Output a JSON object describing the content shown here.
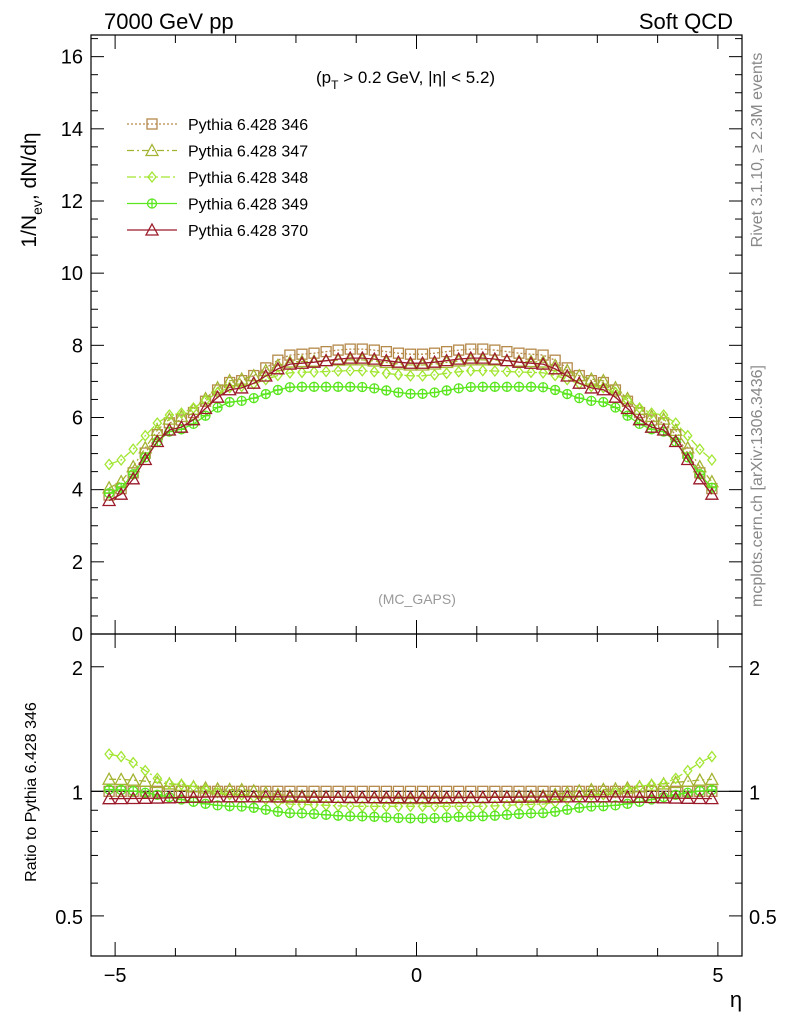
{
  "header": {
    "left": "7000 GeV pp",
    "right": "Soft QCD"
  },
  "side_labels": {
    "rivet": "Rivet 3.1.10, ≥ 2.3M events",
    "mcplots": "mcplots.cern.ch [arXiv:1306.3436]"
  },
  "watermark": "(MC_GAPS)",
  "cut_label": {
    "p": "(p",
    "sub": "T",
    "rest": " > 0.2 GeV, |η| < 5.2)"
  },
  "chart_data": [
    {
      "type": "line",
      "panel": "main",
      "ylabel": "1/N_ev dN/dη",
      "ylabel_parts": {
        "a": "1/N",
        "sub": "ev",
        "b": ", dN/dη"
      },
      "xlim": [
        -5.4,
        5.4
      ],
      "ylim": [
        0,
        16.6
      ],
      "y_ticks": [
        "0",
        "2",
        "4",
        "6",
        "8",
        "10",
        "12",
        "14",
        "16"
      ],
      "legend_position": "top-left",
      "series": [
        {
          "name": "Pythia 6.428 346",
          "color": "#b5894a",
          "marker": "square",
          "dash": "2,2",
          "knots": [
            [
              -5.1,
              3.85
            ],
            [
              -4.0,
              5.9
            ],
            [
              -3.0,
              7.0
            ],
            [
              -2.0,
              7.75
            ],
            [
              -1.0,
              7.9
            ],
            [
              0.0,
              7.75
            ],
            [
              1.0,
              7.9
            ],
            [
              2.0,
              7.75
            ],
            [
              3.0,
              7.0
            ],
            [
              4.0,
              5.9
            ],
            [
              5.1,
              3.85
            ]
          ]
        },
        {
          "name": "Pythia 6.428 347",
          "color": "#a5b332",
          "marker": "triangle-up",
          "dash": "7,3,2,3",
          "knots": [
            [
              -5.1,
              4.05
            ],
            [
              -4.0,
              6.0
            ],
            [
              -3.0,
              7.05
            ],
            [
              -2.0,
              7.55
            ],
            [
              -1.0,
              7.6
            ],
            [
              0.0,
              7.45
            ],
            [
              1.0,
              7.6
            ],
            [
              2.0,
              7.55
            ],
            [
              3.0,
              7.05
            ],
            [
              4.0,
              6.0
            ],
            [
              5.1,
              4.05
            ]
          ]
        },
        {
          "name": "Pythia 6.428 348",
          "color": "#a2e632",
          "marker": "diamond",
          "dash": "9,3,2,3",
          "knots": [
            [
              -5.1,
              4.7
            ],
            [
              -4.0,
              6.1
            ],
            [
              -3.0,
              6.85
            ],
            [
              -2.0,
              7.25
            ],
            [
              -1.0,
              7.3
            ],
            [
              0.0,
              7.15
            ],
            [
              1.0,
              7.3
            ],
            [
              2.0,
              7.25
            ],
            [
              3.0,
              6.85
            ],
            [
              4.0,
              6.1
            ],
            [
              5.1,
              4.7
            ]
          ]
        },
        {
          "name": "Pythia 6.428 349",
          "color": "#5be61f",
          "marker": "circle-cross",
          "dash": "",
          "knots": [
            [
              -5.1,
              3.9
            ],
            [
              -4.0,
              5.65
            ],
            [
              -3.0,
              6.45
            ],
            [
              -2.0,
              6.85
            ],
            [
              -1.0,
              6.85
            ],
            [
              0.0,
              6.65
            ],
            [
              1.0,
              6.85
            ],
            [
              2.0,
              6.85
            ],
            [
              3.0,
              6.45
            ],
            [
              4.0,
              5.65
            ],
            [
              5.1,
              3.9
            ]
          ]
        },
        {
          "name": "Pythia 6.428 370",
          "color": "#9b1a2a",
          "marker": "triangle-up",
          "dash": "",
          "knots": [
            [
              -5.1,
              3.7
            ],
            [
              -4.0,
              5.7
            ],
            [
              -3.0,
              6.8
            ],
            [
              -2.0,
              7.5
            ],
            [
              -1.0,
              7.65
            ],
            [
              0.0,
              7.5
            ],
            [
              1.0,
              7.65
            ],
            [
              2.0,
              7.5
            ],
            [
              3.0,
              6.8
            ],
            [
              4.0,
              5.7
            ],
            [
              5.1,
              3.7
            ]
          ]
        }
      ]
    },
    {
      "type": "line",
      "panel": "ratio",
      "ylabel": "Ratio to Pythia 6.428 346",
      "xlabel": "η",
      "xlim": [
        -5.4,
        5.4
      ],
      "ylim": [
        0.4,
        2.4
      ],
      "log_y": true,
      "x_ticks": [
        "−5",
        "0",
        "5"
      ],
      "y_ticks": [
        "0.5",
        "1",
        "2"
      ],
      "series": [
        {
          "name": "Pythia 6.428 346",
          "knots": [
            [
              -5.1,
              1.0
            ],
            [
              5.1,
              1.0
            ]
          ]
        },
        {
          "name": "Pythia 6.428 347",
          "knots": [
            [
              -5.1,
              1.07
            ],
            [
              -3.0,
              1.01
            ],
            [
              -2.0,
              0.975
            ],
            [
              -1.0,
              0.965
            ],
            [
              0.0,
              0.96
            ],
            [
              1.0,
              0.965
            ],
            [
              2.0,
              0.975
            ],
            [
              3.0,
              1.01
            ],
            [
              5.1,
              1.07
            ]
          ]
        },
        {
          "name": "Pythia 6.428 348",
          "knots": [
            [
              -5.1,
              1.23
            ],
            [
              -4.0,
              1.04
            ],
            [
              -3.0,
              0.98
            ],
            [
              -2.0,
              0.93
            ],
            [
              -1.0,
              0.92
            ],
            [
              0.0,
              0.92
            ],
            [
              1.0,
              0.92
            ],
            [
              2.0,
              0.93
            ],
            [
              3.0,
              0.98
            ],
            [
              4.0,
              1.04
            ],
            [
              5.1,
              1.23
            ]
          ]
        },
        {
          "name": "Pythia 6.428 349",
          "knots": [
            [
              -5.1,
              1.01
            ],
            [
              -3.0,
              0.92
            ],
            [
              -2.0,
              0.885
            ],
            [
              -1.0,
              0.87
            ],
            [
              0.0,
              0.86
            ],
            [
              1.0,
              0.87
            ],
            [
              2.0,
              0.885
            ],
            [
              3.0,
              0.92
            ],
            [
              5.1,
              1.01
            ]
          ]
        },
        {
          "name": "Pythia 6.428 370",
          "knots": [
            [
              -5.1,
              0.96
            ],
            [
              -3.0,
              0.97
            ],
            [
              0.0,
              0.965
            ],
            [
              3.0,
              0.97
            ],
            [
              5.1,
              0.96
            ]
          ]
        }
      ]
    }
  ]
}
